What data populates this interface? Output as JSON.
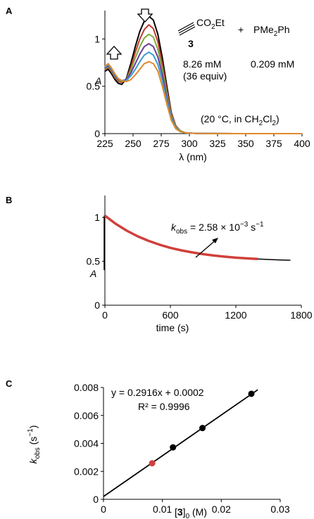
{
  "chart_data": [
    {
      "panel_label": "A",
      "type": "line",
      "xlabel": "λ (nm)",
      "ylabel": "A",
      "xlim": [
        225,
        400
      ],
      "ylim": [
        0,
        1.3
      ],
      "xticks": [
        "225",
        "250",
        "275",
        "300",
        "325",
        "350",
        "375",
        "400"
      ],
      "yticks": [
        "0",
        "0.5",
        "1"
      ],
      "grid": false,
      "annotations": {
        "reagent_formula": "CO2Et",
        "reagent_number": "3",
        "plus": "+",
        "phosphine": "PMe2Ph",
        "conc_reagent": "8.26 mM",
        "equiv": "(36 equiv)",
        "conc_phosphine": "0.209 mM",
        "conditions": "(20 °C, in CH2Cl2)"
      },
      "series": [
        {
          "color": "#000000",
          "x": [
            225,
            228,
            231,
            234,
            237,
            240,
            244,
            248,
            252,
            256,
            260,
            264,
            268,
            272,
            276,
            280,
            284,
            288,
            292,
            296,
            300,
            305,
            310,
            320,
            340,
            370,
            400
          ],
          "y": [
            0.66,
            0.68,
            0.63,
            0.57,
            0.53,
            0.52,
            0.58,
            0.74,
            0.92,
            1.08,
            1.19,
            1.24,
            1.2,
            1.05,
            0.8,
            0.5,
            0.22,
            0.08,
            0.03,
            0.01,
            0.005,
            0.003,
            0.002,
            0.001,
            0.0,
            0.0,
            0.0
          ]
        },
        {
          "color": "#c0392b",
          "x": [
            225,
            228,
            231,
            234,
            237,
            240,
            244,
            248,
            252,
            256,
            260,
            264,
            268,
            272,
            276,
            280,
            284,
            288,
            292,
            296,
            300,
            305,
            310,
            320,
            340,
            370,
            400
          ],
          "y": [
            0.67,
            0.7,
            0.65,
            0.59,
            0.55,
            0.54,
            0.57,
            0.7,
            0.86,
            1.0,
            1.1,
            1.15,
            1.11,
            0.97,
            0.74,
            0.46,
            0.21,
            0.08,
            0.03,
            0.01,
            0.005,
            0.003,
            0.002,
            0.001,
            0.0,
            0.0,
            0.0
          ]
        },
        {
          "color": "#7cab3e",
          "x": [
            225,
            228,
            231,
            234,
            237,
            240,
            244,
            248,
            252,
            256,
            260,
            264,
            268,
            272,
            276,
            280,
            284,
            288,
            292,
            296,
            300,
            305,
            310,
            320,
            340,
            370,
            400
          ],
          "y": [
            0.68,
            0.71,
            0.66,
            0.6,
            0.56,
            0.55,
            0.57,
            0.67,
            0.8,
            0.92,
            1.01,
            1.05,
            1.02,
            0.89,
            0.68,
            0.42,
            0.19,
            0.07,
            0.03,
            0.01,
            0.005,
            0.003,
            0.002,
            0.001,
            0.0,
            0.0,
            0.0
          ]
        },
        {
          "color": "#6a3d9a",
          "x": [
            225,
            228,
            231,
            234,
            237,
            240,
            244,
            248,
            252,
            256,
            260,
            264,
            268,
            272,
            276,
            280,
            284,
            288,
            292,
            296,
            300,
            305,
            310,
            320,
            340,
            370,
            400
          ],
          "y": [
            0.69,
            0.72,
            0.67,
            0.61,
            0.57,
            0.56,
            0.57,
            0.64,
            0.74,
            0.84,
            0.92,
            0.95,
            0.92,
            0.81,
            0.62,
            0.38,
            0.17,
            0.06,
            0.02,
            0.01,
            0.005,
            0.003,
            0.002,
            0.001,
            0.0,
            0.0,
            0.0
          ]
        },
        {
          "color": "#3a9bd0",
          "x": [
            225,
            228,
            231,
            234,
            237,
            240,
            244,
            248,
            252,
            256,
            260,
            264,
            268,
            272,
            276,
            280,
            284,
            288,
            292,
            296,
            300,
            305,
            310,
            320,
            340,
            370,
            400
          ],
          "y": [
            0.7,
            0.73,
            0.68,
            0.62,
            0.58,
            0.56,
            0.56,
            0.61,
            0.68,
            0.76,
            0.83,
            0.86,
            0.83,
            0.73,
            0.56,
            0.35,
            0.16,
            0.06,
            0.02,
            0.01,
            0.005,
            0.003,
            0.002,
            0.001,
            0.0,
            0.0,
            0.0
          ]
        },
        {
          "color": "#e08a2c",
          "x": [
            225,
            228,
            231,
            234,
            237,
            240,
            244,
            248,
            252,
            256,
            260,
            264,
            268,
            272,
            276,
            280,
            284,
            288,
            292,
            296,
            300,
            305,
            310,
            320,
            340,
            370,
            400
          ],
          "y": [
            0.71,
            0.74,
            0.69,
            0.63,
            0.58,
            0.56,
            0.55,
            0.57,
            0.62,
            0.68,
            0.74,
            0.76,
            0.74,
            0.66,
            0.5,
            0.31,
            0.14,
            0.05,
            0.02,
            0.01,
            0.005,
            0.003,
            0.002,
            0.001,
            0.0,
            0.0,
            0.0
          ]
        }
      ]
    },
    {
      "panel_label": "B",
      "type": "line",
      "xlabel": "time (s)",
      "ylabel": "A",
      "xlim": [
        0,
        1800
      ],
      "ylim": [
        0,
        1.25
      ],
      "xticks": [
        "0",
        "600",
        "1200",
        "1800"
      ],
      "yticks": [
        "0",
        "0.5",
        "1"
      ],
      "grid": false,
      "annotation": "kobs = 2.58 × 10−3 s−1",
      "series": [
        {
          "color": "#000000",
          "x": [
            0,
            100,
            200,
            300,
            400,
            500,
            600,
            700,
            800,
            900,
            1000,
            1100,
            1200,
            1300,
            1400,
            1500,
            1600,
            1700
          ],
          "y": [
            1.02,
            0.926,
            0.849,
            0.785,
            0.733,
            0.69,
            0.654,
            0.625,
            0.602,
            0.582,
            0.566,
            0.553,
            0.542,
            0.534,
            0.527,
            0.521,
            0.516,
            0.513
          ]
        },
        {
          "color": "#d0403b",
          "x": [
            0,
            100,
            200,
            300,
            400,
            500,
            600,
            700,
            800,
            900,
            1000,
            1100,
            1200,
            1300,
            1400
          ],
          "y": [
            1.02,
            0.926,
            0.849,
            0.785,
            0.733,
            0.69,
            0.654,
            0.625,
            0.602,
            0.582,
            0.566,
            0.553,
            0.542,
            0.534,
            0.527
          ]
        }
      ]
    },
    {
      "panel_label": "C",
      "type": "scatter",
      "xlabel": "[3]0 (M)",
      "ylabel": "kobs (s−1)",
      "xlim": [
        0,
        0.03
      ],
      "ylim": [
        0,
        0.008
      ],
      "xticks": [
        "0",
        "0.01",
        "0.02",
        "0.03"
      ],
      "yticks": [
        "0",
        "0.002",
        "0.004",
        "0.006",
        "0.008"
      ],
      "grid": false,
      "equation": "y = 0.2916x + 0.0002",
      "r2": "R² = 0.9996",
      "fit": {
        "slope": 0.2916,
        "intercept": 0.0002
      },
      "points": [
        {
          "x": 0.00826,
          "y": 0.00258,
          "color": "#d0403b"
        },
        {
          "x": 0.0118,
          "y": 0.00372,
          "color": "#000000"
        },
        {
          "x": 0.0168,
          "y": 0.0051,
          "color": "#000000"
        },
        {
          "x": 0.0251,
          "y": 0.00755,
          "color": "#000000"
        }
      ]
    }
  ]
}
